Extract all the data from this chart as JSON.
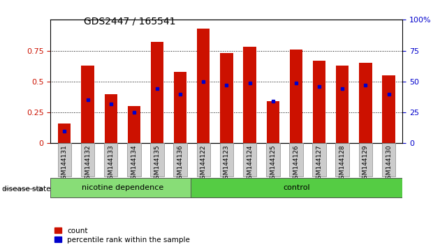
{
  "title": "GDS2447 / 165541",
  "categories": [
    "GSM144131",
    "GSM144132",
    "GSM144133",
    "GSM144134",
    "GSM144135",
    "GSM144136",
    "GSM144122",
    "GSM144123",
    "GSM144124",
    "GSM144125",
    "GSM144126",
    "GSM144127",
    "GSM144128",
    "GSM144129",
    "GSM144130"
  ],
  "red_values": [
    0.16,
    0.63,
    0.4,
    0.3,
    0.82,
    0.58,
    0.93,
    0.73,
    0.78,
    0.34,
    0.76,
    0.67,
    0.63,
    0.65,
    0.55
  ],
  "blue_values": [
    0.1,
    0.35,
    0.32,
    0.25,
    0.44,
    0.4,
    0.5,
    0.47,
    0.49,
    0.34,
    0.49,
    0.46,
    0.44,
    0.47,
    0.4
  ],
  "group1_label": "nicotine dependence",
  "group2_label": "control",
  "group1_count": 6,
  "group2_count": 9,
  "disease_state_label": "disease state",
  "legend_red": "count",
  "legend_blue": "percentile rank within the sample",
  "bar_color_red": "#cc1100",
  "bar_color_blue": "#0000cc",
  "group1_bg": "#88dd77",
  "group2_bg": "#55cc44",
  "tick_bg": "#cccccc",
  "ylim_left": [
    0,
    1
  ],
  "ylim_right": [
    0,
    100
  ],
  "yticks_left": [
    0,
    0.25,
    0.5,
    0.75
  ],
  "ytick_labels_left": [
    "0",
    "0.25",
    "0.5",
    "0.75"
  ],
  "yticks_right": [
    0,
    25,
    50,
    75,
    100
  ],
  "ytick_labels_right": [
    "0",
    "25",
    "50",
    "75",
    "100%"
  ],
  "bar_width": 0.55,
  "figsize": [
    6.3,
    3.54
  ],
  "dpi": 100
}
